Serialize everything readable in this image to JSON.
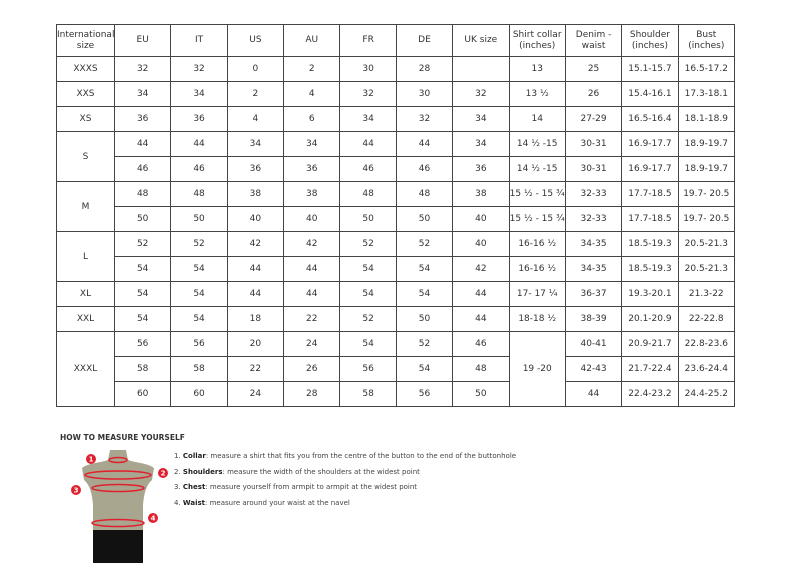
{
  "table": {
    "headers": [
      "International size",
      "EU",
      "IT",
      "US",
      "AU",
      "FR",
      "DE",
      "UK size",
      "Shirt collar (inches)",
      "Denim - waist",
      "Shoulder (inches)",
      "Bust (inches)"
    ],
    "rows": [
      {
        "intl": "XXXS",
        "span": 1,
        "cells": [
          "32",
          "32",
          "0",
          "2",
          "30",
          "28",
          ""
        ],
        "collar": "13",
        "collar_span": 1,
        "rest": [
          "25",
          "15.1-15.7",
          "16.5-17.2"
        ]
      },
      {
        "intl": "XXS",
        "span": 1,
        "cells": [
          "34",
          "34",
          "2",
          "4",
          "32",
          "30",
          "32"
        ],
        "collar": "13 ½",
        "collar_span": 1,
        "rest": [
          "26",
          "15.4-16.1",
          "17.3-18.1"
        ]
      },
      {
        "intl": "XS",
        "span": 1,
        "cells": [
          "36",
          "36",
          "4",
          "6",
          "34",
          "32",
          "34"
        ],
        "collar": "14",
        "collar_span": 1,
        "rest": [
          "27-29",
          "16.5-16.4",
          "18.1-18.9"
        ]
      },
      {
        "intl": "S",
        "span": 2,
        "cells": [
          "44",
          "44",
          "34",
          "34",
          "44",
          "44",
          "34"
        ],
        "collar": "14 ½ -15",
        "collar_span": 1,
        "rest": [
          "30-31",
          "16.9-17.7",
          "18.9-19.7"
        ]
      },
      {
        "intl": null,
        "cells": [
          "46",
          "46",
          "36",
          "36",
          "46",
          "46",
          "36"
        ],
        "collar": "14 ½ -15",
        "collar_span": 1,
        "rest": [
          "30-31",
          "16.9-17.7",
          "18.9-19.7"
        ]
      },
      {
        "intl": "M",
        "span": 2,
        "cells": [
          "48",
          "48",
          "38",
          "38",
          "48",
          "48",
          "38"
        ],
        "collar": "15 ½ - 15 ¾",
        "collar_span": 1,
        "rest": [
          "32-33",
          "17.7-18.5",
          "19.7- 20.5"
        ]
      },
      {
        "intl": null,
        "cells": [
          "50",
          "50",
          "40",
          "40",
          "50",
          "50",
          "40"
        ],
        "collar": "15 ½ - 15 ¾",
        "collar_span": 1,
        "rest": [
          "32-33",
          "17.7-18.5",
          "19.7- 20.5"
        ]
      },
      {
        "intl": "L",
        "span": 2,
        "cells": [
          "52",
          "52",
          "42",
          "42",
          "52",
          "52",
          "40"
        ],
        "collar": "16-16 ½",
        "collar_span": 1,
        "rest": [
          "34-35",
          "18.5-19.3",
          "20.5-21.3"
        ]
      },
      {
        "intl": null,
        "cells": [
          "54",
          "54",
          "44",
          "44",
          "54",
          "54",
          "42"
        ],
        "collar": "16-16 ½",
        "collar_span": 1,
        "rest": [
          "34-35",
          "18.5-19.3",
          "20.5-21.3"
        ]
      },
      {
        "intl": "XL",
        "span": 1,
        "cells": [
          "54",
          "54",
          "44",
          "44",
          "54",
          "54",
          "44"
        ],
        "collar": "17- 17 ¼",
        "collar_span": 1,
        "rest": [
          "36-37",
          "19.3-20.1",
          "21.3-22"
        ]
      },
      {
        "intl": "XXL",
        "span": 1,
        "cells": [
          "54",
          "54",
          "18",
          "22",
          "52",
          "50",
          "44"
        ],
        "collar": "18-18 ½",
        "collar_span": 1,
        "rest": [
          "38-39",
          "20.1-20.9",
          "22-22.8"
        ]
      },
      {
        "intl": "XXXL",
        "span": 3,
        "cells": [
          "56",
          "56",
          "20",
          "24",
          "54",
          "52",
          "46"
        ],
        "collar": "19 -20",
        "collar_span": 3,
        "rest": [
          "40-41",
          "20.9-21.7",
          "22.8-23.6"
        ]
      },
      {
        "intl": null,
        "cells": [
          "58",
          "58",
          "22",
          "26",
          "56",
          "54",
          "48"
        ],
        "collar": null,
        "rest": [
          "42-43",
          "21.7-22.4",
          "23.6-24.4"
        ]
      },
      {
        "intl": null,
        "cells": [
          "60",
          "60",
          "24",
          "28",
          "58",
          "56",
          "50"
        ],
        "collar": null,
        "rest": [
          "44",
          "22.4-23.2",
          "24.4-25.2"
        ]
      }
    ]
  },
  "howto": {
    "title": "HOW TO MEASURE YOURSELF",
    "steps": [
      {
        "num": "1.",
        "term": "Collar",
        "text": ": measure a shirt that fits you from the centre of the button to the end of the buttonhole"
      },
      {
        "num": "2.",
        "term": "Shoulders",
        "text": ": measure the width of the shoulders at the widest point"
      },
      {
        "num": "3.",
        "term": "Chest",
        "text": ": measure yourself from armpit to armpit at the widest point"
      },
      {
        "num": "4.",
        "term": "Waist",
        "text": ": measure around your waist at the navel"
      }
    ],
    "markers": [
      "1",
      "2",
      "3",
      "4"
    ],
    "colors": {
      "marker": "#e0202e",
      "body": "#a9a690",
      "shorts": "#111111"
    }
  }
}
